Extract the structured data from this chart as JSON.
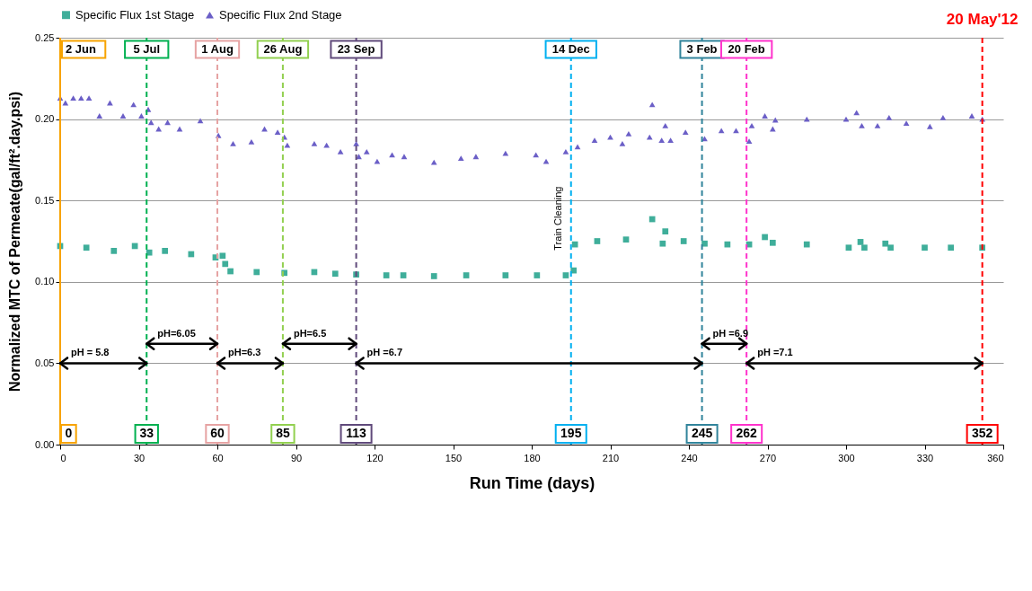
{
  "chart_data": {
    "type": "scatter",
    "xlabel": "Run Time (days)",
    "ylabel": "Normalized MTC of Permeate(gal/ft².day.psi)",
    "xlim": [
      0,
      360
    ],
    "xticks": [
      0,
      30,
      60,
      90,
      120,
      150,
      180,
      210,
      240,
      270,
      300,
      330,
      360
    ],
    "ylim": [
      0,
      0.25
    ],
    "yticks": [
      {
        "value": 0,
        "label": "0.00"
      },
      {
        "value": 0.05,
        "label": "0.05"
      },
      {
        "value": 0.1,
        "label": "0.10"
      },
      {
        "value": 0.15,
        "label": "0.15"
      },
      {
        "value": 0.2,
        "label": "0.20"
      },
      {
        "value": 0.25,
        "label": "0.25"
      }
    ],
    "grid": "y",
    "legend": "top",
    "series": [
      {
        "name": "Specific Flux 1st Stage",
        "color": "#3fae9a",
        "marker": "square",
        "x": [
          0,
          10,
          20.5,
          28.5,
          34,
          40,
          50,
          59.3,
          62,
          63,
          65,
          75,
          85.6,
          97,
          105,
          113,
          124.5,
          131,
          142.7,
          155,
          170,
          182,
          193,
          196,
          196.5,
          205,
          216,
          226,
          230,
          231,
          238,
          246,
          254.7,
          263,
          269,
          272,
          285,
          301,
          305.5,
          307,
          315,
          317,
          330,
          340,
          352
        ],
        "values": [
          0.122,
          0.121,
          0.119,
          0.122,
          0.118,
          0.119,
          0.117,
          0.115,
          0.116,
          0.111,
          0.1065,
          0.106,
          0.1055,
          0.106,
          0.105,
          0.1045,
          0.104,
          0.104,
          0.1035,
          0.104,
          0.104,
          0.104,
          0.104,
          0.107,
          0.123,
          0.125,
          0.126,
          0.1385,
          0.1235,
          0.131,
          0.125,
          0.1235,
          0.123,
          0.123,
          0.1275,
          0.124,
          0.123,
          0.121,
          0.1245,
          0.121,
          0.1235,
          0.121,
          0.121,
          0.121,
          0.121
        ]
      },
      {
        "name": "Specific Flux 2nd Stage",
        "color": "#6b5fc7",
        "marker": "triangle",
        "x": [
          0,
          2,
          5,
          8,
          11,
          15,
          19,
          24,
          28,
          31,
          33.6,
          34.7,
          37.6,
          41,
          45.6,
          53.5,
          60.4,
          66,
          73,
          78,
          83,
          85.6,
          86.7,
          97,
          101.7,
          107,
          113,
          114,
          117,
          121,
          126.7,
          131.3,
          142.7,
          153,
          158.7,
          170,
          181.6,
          185.5,
          193,
          197.5,
          204,
          210,
          214.6,
          217,
          225,
          226,
          229.6,
          231,
          233,
          238.7,
          246,
          252.4,
          258,
          263,
          264,
          269,
          272,
          273,
          285,
          300,
          304,
          306,
          312,
          316.4,
          323,
          332,
          337,
          348,
          352
        ],
        "values": [
          0.213,
          0.21,
          0.213,
          0.213,
          0.213,
          0.202,
          0.21,
          0.202,
          0.209,
          0.202,
          0.206,
          0.198,
          0.194,
          0.198,
          0.194,
          0.199,
          0.19,
          0.185,
          0.186,
          0.194,
          0.192,
          0.189,
          0.184,
          0.185,
          0.184,
          0.18,
          0.185,
          0.177,
          0.18,
          0.174,
          0.178,
          0.177,
          0.1735,
          0.176,
          0.177,
          0.179,
          0.178,
          0.174,
          0.18,
          0.183,
          0.187,
          0.189,
          0.185,
          0.191,
          0.189,
          0.209,
          0.187,
          0.196,
          0.187,
          0.192,
          0.188,
          0.193,
          0.193,
          0.1865,
          0.196,
          0.202,
          0.194,
          0.1995,
          0.2,
          0.2,
          0.204,
          0.196,
          0.196,
          0.201,
          0.1975,
          0.1955,
          0.201,
          0.202,
          0.2
        ]
      }
    ],
    "ref_lines": [
      {
        "axis": "x",
        "value": 0,
        "label": "2 Jun",
        "color": "#f7a300",
        "line_style": "solid"
      },
      {
        "axis": "x",
        "value": 33,
        "label": "5 Jul",
        "color": "#00b050",
        "line_style": "dashed"
      },
      {
        "axis": "x",
        "value": 60,
        "label": "1 Aug",
        "color": "#e6a3a3",
        "line_style": "dashed"
      },
      {
        "axis": "x",
        "value": 85,
        "label": "26 Aug",
        "color": "#92d050",
        "line_style": "dashed"
      },
      {
        "axis": "x",
        "value": 113,
        "label": "23 Sep",
        "color": "#604a7b",
        "line_style": "dashed"
      },
      {
        "axis": "x",
        "value": 195,
        "label": "14 Dec",
        "color": "#00b0f0",
        "line_style": "dashed"
      },
      {
        "axis": "x",
        "value": 245,
        "label": "3 Feb",
        "color": "#31849b",
        "line_style": "dashed"
      },
      {
        "axis": "x",
        "value": 262,
        "label": "20 Feb",
        "color": "#ff33cc",
        "line_style": "dashed"
      },
      {
        "axis": "x",
        "value": 352,
        "label": "20 May'12",
        "color": "#ff0000",
        "line_style": "dashed"
      }
    ],
    "annotations": [
      {
        "text": "pH =  5.8",
        "x": 0,
        "y": 0.05
      },
      {
        "text": "pH=6.05",
        "x": 33,
        "y": 0.062
      },
      {
        "text": "pH=6.3",
        "x": 60,
        "y": 0.05
      },
      {
        "text": "pH=6.5",
        "x": 85,
        "y": 0.062
      },
      {
        "text": "pH =6.7",
        "x": 113,
        "y": 0.05
      },
      {
        "text": "pH =6.9",
        "x": 245,
        "y": 0.062
      },
      {
        "text": "pH =7.1",
        "x": 262,
        "y": 0.05
      },
      {
        "text": "0",
        "x": 0
      },
      {
        "text": "33",
        "x": 33
      },
      {
        "text": "60",
        "x": 60
      },
      {
        "text": "85",
        "x": 85
      },
      {
        "text": "113",
        "x": 113
      },
      {
        "text": "195",
        "x": 195
      },
      {
        "text": "245",
        "x": 245
      },
      {
        "text": "262",
        "x": 262
      },
      {
        "text": "352",
        "x": 352
      },
      {
        "text": "Train Cleaning",
        "x": 195,
        "y": 0.139
      }
    ]
  }
}
